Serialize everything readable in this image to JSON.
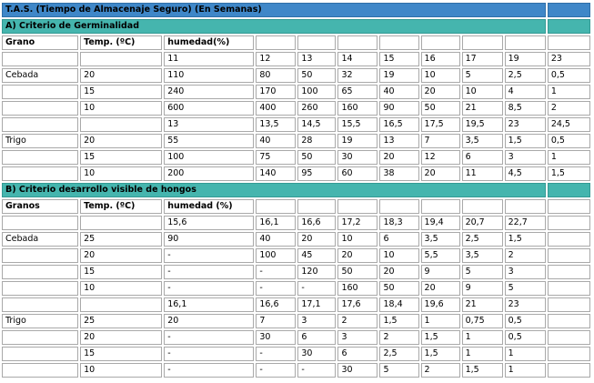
{
  "title": "T.A.S. (Tiempo de Almacenaje Seguro) (En Semanas)",
  "sections": [
    {
      "heading": "A) Criterio de Germinalidad",
      "header": [
        "Grano",
        "Temp. (ºC)",
        "humedad(%)"
      ],
      "rows": [
        [
          null,
          null,
          "11",
          "12",
          "13",
          "14",
          "15",
          "16",
          "17",
          "19",
          "23"
        ],
        [
          "Cebada",
          "20",
          "110",
          "80",
          "50",
          "32",
          "19",
          "10",
          "5",
          "2,5",
          "0,5"
        ],
        [
          null,
          "15",
          "240",
          "170",
          "100",
          "65",
          "40",
          "20",
          "10",
          "4",
          "1"
        ],
        [
          null,
          "10",
          "600",
          "400",
          "260",
          "160",
          "90",
          "50",
          "21",
          "8,5",
          "2"
        ],
        [
          null,
          null,
          "13",
          "13,5",
          "14,5",
          "15,5",
          "16,5",
          "17,5",
          "19,5",
          "23",
          "24,5"
        ],
        [
          "Trigo",
          "20",
          "55",
          "40",
          "28",
          "19",
          "13",
          "7",
          "3,5",
          "1,5",
          "0,5"
        ],
        [
          null,
          "15",
          "100",
          "75",
          "50",
          "30",
          "20",
          "12",
          "6",
          "3",
          "1"
        ],
        [
          null,
          "10",
          "200",
          "140",
          "95",
          "60",
          "38",
          "20",
          "11",
          "4,5",
          "1,5"
        ]
      ]
    },
    {
      "heading": "B) Criterio desarrollo visible de hongos",
      "header": [
        "Granos",
        "Temp. (ºC)",
        "humedad (%)"
      ],
      "rows": [
        [
          null,
          null,
          "15,6",
          "16,1",
          "16,6",
          "17,2",
          "18,3",
          "19,4",
          "20,7",
          "22,7",
          null
        ],
        [
          "Cebada",
          "25",
          "90",
          "40",
          "20",
          "10",
          "6",
          "3,5",
          "2,5",
          "1,5",
          null
        ],
        [
          null,
          "20",
          "-",
          "100",
          "45",
          "20",
          "10",
          "5,5",
          "3,5",
          "2",
          null
        ],
        [
          null,
          "15",
          "-",
          "-",
          "120",
          "50",
          "20",
          "9",
          "5",
          "3",
          null
        ],
        [
          null,
          "10",
          "-",
          "-",
          "-",
          "160",
          "50",
          "20",
          "9",
          "5",
          null
        ],
        [
          null,
          null,
          "16,1",
          "16,6",
          "17,1",
          "17,6",
          "18,4",
          "19,6",
          "21",
          "23",
          null
        ],
        [
          "Trigo",
          "25",
          "20",
          "7",
          "3",
          "2",
          "1,5",
          "1",
          "0,75",
          "0,5",
          null
        ],
        [
          null,
          "20",
          "-",
          "30",
          "6",
          "3",
          "2",
          "1,5",
          "1",
          "0,5",
          null
        ],
        [
          null,
          "15",
          "-",
          "-",
          "30",
          "6",
          "2,5",
          "1,5",
          "1",
          "1",
          null
        ],
        [
          null,
          "10",
          "-",
          "-",
          "-",
          "30",
          "5",
          "2",
          "1,5",
          "1",
          null
        ]
      ]
    }
  ]
}
